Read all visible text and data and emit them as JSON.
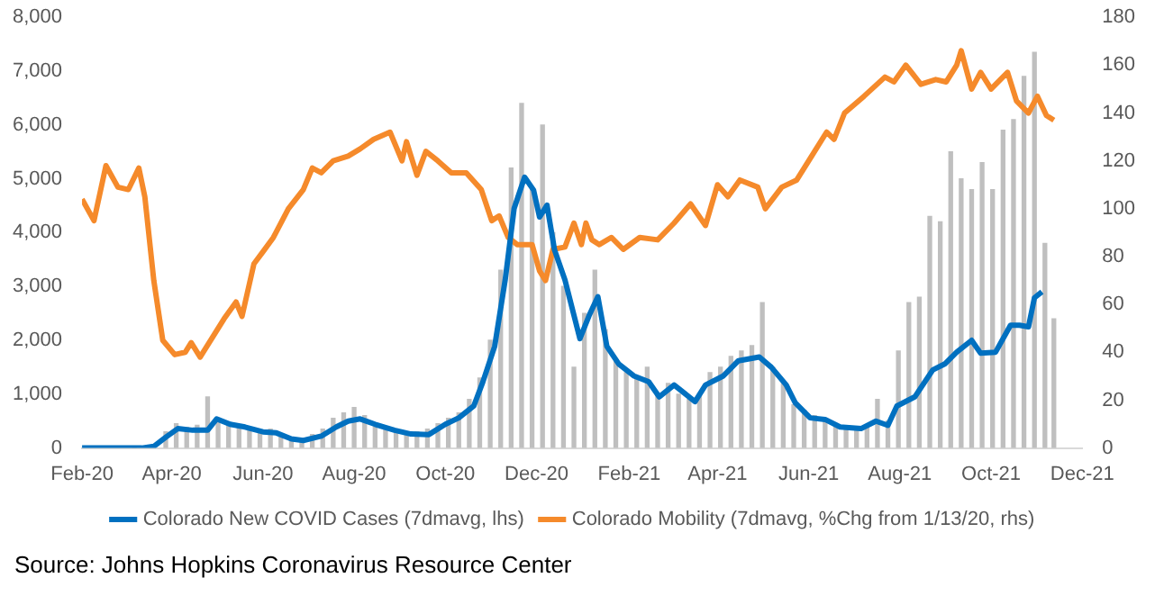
{
  "chart_data": {
    "type": "line",
    "legend": "bottom",
    "grid": false,
    "xlim": [
      "2020-02-01",
      "2021-12-01"
    ],
    "xticks": [
      {
        "value": "2020-02-01",
        "label": "Feb-20"
      },
      {
        "value": "2020-04-01",
        "label": "Apr-20"
      },
      {
        "value": "2020-06-01",
        "label": "Jun-20"
      },
      {
        "value": "2020-08-01",
        "label": "Aug-20"
      },
      {
        "value": "2020-10-01",
        "label": "Oct-20"
      },
      {
        "value": "2020-12-01",
        "label": "Dec-20"
      },
      {
        "value": "2021-02-01",
        "label": "Feb-21"
      },
      {
        "value": "2021-04-01",
        "label": "Apr-21"
      },
      {
        "value": "2021-06-01",
        "label": "Jun-21"
      },
      {
        "value": "2021-08-01",
        "label": "Aug-21"
      },
      {
        "value": "2021-10-01",
        "label": "Oct-21"
      },
      {
        "value": "2021-12-01",
        "label": "Dec-21"
      }
    ],
    "ylim": [
      0,
      8000
    ],
    "yticks": [
      0,
      {
        "value": 1000,
        "label": "1,000"
      },
      {
        "value": 2000,
        "label": "2,000"
      },
      {
        "value": 3000,
        "label": "3,000"
      },
      {
        "value": 4000,
        "label": "4,000"
      },
      {
        "value": 5000,
        "label": "5,000"
      },
      {
        "value": 6000,
        "label": "6,000"
      },
      {
        "value": 7000,
        "label": "7,000"
      },
      {
        "value": 8000,
        "label": "8,000"
      }
    ],
    "y2lim": [
      0,
      180
    ],
    "y2ticks": [
      0,
      20,
      40,
      60,
      80,
      100,
      120,
      140,
      160,
      180
    ],
    "annotations": [
      "Source: Johns Hopkins Coronavirus Resource Center"
    ],
    "series": [
      {
        "type": "bar",
        "color": "#bfbfbf",
        "x": [
          "2020-03-07",
          "2020-03-14",
          "2020-03-21",
          "2020-03-28",
          "2020-04-04",
          "2020-04-11",
          "2020-04-18",
          "2020-04-25",
          "2020-05-02",
          "2020-05-09",
          "2020-05-16",
          "2020-05-23",
          "2020-05-30",
          "2020-06-06",
          "2020-06-13",
          "2020-06-20",
          "2020-06-27",
          "2020-07-04",
          "2020-07-11",
          "2020-07-18",
          "2020-07-25",
          "2020-08-01",
          "2020-08-08",
          "2020-08-15",
          "2020-08-22",
          "2020-08-29",
          "2020-09-05",
          "2020-09-12",
          "2020-09-19",
          "2020-09-26",
          "2020-10-03",
          "2020-10-10",
          "2020-10-17",
          "2020-10-24",
          "2020-10-31",
          "2020-11-07",
          "2020-11-14",
          "2020-11-21",
          "2020-11-28",
          "2020-12-05",
          "2020-12-12",
          "2020-12-19",
          "2020-12-26",
          "2021-01-02",
          "2021-01-09",
          "2021-01-16",
          "2021-01-23",
          "2021-01-30",
          "2021-02-06",
          "2021-02-13",
          "2021-02-20",
          "2021-02-27",
          "2021-03-06",
          "2021-03-13",
          "2021-03-20",
          "2021-03-27",
          "2021-04-03",
          "2021-04-10",
          "2021-04-17",
          "2021-04-24",
          "2021-05-01",
          "2021-05-08",
          "2021-05-15",
          "2021-05-22",
          "2021-05-29",
          "2021-06-05",
          "2021-06-12",
          "2021-06-19",
          "2021-06-26",
          "2021-07-03",
          "2021-07-10",
          "2021-07-17",
          "2021-07-24",
          "2021-07-31",
          "2021-08-07",
          "2021-08-14",
          "2021-08-21",
          "2021-08-28",
          "2021-09-04",
          "2021-09-11",
          "2021-09-18",
          "2021-09-25",
          "2021-10-02",
          "2021-10-09",
          "2021-10-16",
          "2021-10-23",
          "2021-10-30",
          "2021-11-06",
          "2021-11-12"
        ],
        "values": [
          0,
          null,
          null,
          300,
          450,
          380,
          420,
          950,
          550,
          480,
          400,
          350,
          300,
          350,
          250,
          150,
          180,
          250,
          350,
          550,
          650,
          750,
          600,
          450,
          350,
          300,
          250,
          300,
          350,
          450,
          550,
          650,
          900,
          1300,
          2000,
          3300,
          5200,
          6400,
          4800,
          6000,
          4000,
          3000,
          1500,
          2500,
          3300,
          2200,
          1600,
          1400,
          1300,
          1500,
          1000,
          1200,
          1000,
          900,
          1000,
          1400,
          1500,
          1700,
          1800,
          1900,
          2700,
          1500,
          1200,
          800,
          700,
          600,
          500,
          450,
          400,
          350,
          400,
          900,
          500,
          1800,
          2700,
          2800,
          4300,
          4200,
          5500,
          5000,
          4800,
          5300,
          4800,
          5900,
          6100,
          6900,
          7350,
          3800,
          2400
        ]
      },
      {
        "name": "Colorado New COVID Cases (7dmavg, lhs)",
        "color": "#0070c0",
        "x": [
          "2020-02-01",
          "2020-03-12",
          "2020-03-20",
          "2020-03-28",
          "2020-04-05",
          "2020-04-15",
          "2020-04-25",
          "2020-05-01",
          "2020-05-10",
          "2020-05-20",
          "2020-06-01",
          "2020-06-10",
          "2020-06-20",
          "2020-06-28",
          "2020-07-10",
          "2020-07-20",
          "2020-07-28",
          "2020-08-05",
          "2020-08-15",
          "2020-08-28",
          "2020-09-08",
          "2020-09-20",
          "2020-10-01",
          "2020-10-10",
          "2020-10-20",
          "2020-10-26",
          "2020-11-03",
          "2020-11-10",
          "2020-11-16",
          "2020-11-23",
          "2020-11-29",
          "2020-12-03",
          "2020-12-08",
          "2020-12-13",
          "2020-12-20",
          "2020-12-30",
          "2021-01-05",
          "2021-01-11",
          "2021-01-17",
          "2021-01-25",
          "2021-02-04",
          "2021-02-14",
          "2021-02-21",
          "2021-03-03",
          "2021-03-17",
          "2021-03-24",
          "2021-04-05",
          "2021-04-15",
          "2021-04-29",
          "2021-05-07",
          "2021-05-17",
          "2021-05-23",
          "2021-06-02",
          "2021-06-12",
          "2021-06-22",
          "2021-07-06",
          "2021-07-16",
          "2021-07-24",
          "2021-07-30",
          "2021-08-11",
          "2021-08-23",
          "2021-08-31",
          "2021-09-08",
          "2021-09-18",
          "2021-09-24",
          "2021-10-04",
          "2021-10-14",
          "2021-10-20",
          "2021-10-26",
          "2021-10-30",
          "2021-11-04"
        ],
        "values": [
          0,
          0,
          30,
          200,
          360,
          330,
          330,
          540,
          440,
          390,
          300,
          280,
          170,
          140,
          220,
          390,
          500,
          540,
          440,
          330,
          260,
          250,
          440,
          560,
          780,
          1220,
          1890,
          3120,
          4450,
          5030,
          4790,
          4290,
          4510,
          3680,
          3120,
          2030,
          2450,
          2810,
          1890,
          1560,
          1340,
          1230,
          950,
          1170,
          860,
          1170,
          1340,
          1620,
          1690,
          1500,
          1170,
          840,
          560,
          530,
          390,
          360,
          500,
          420,
          780,
          950,
          1450,
          1560,
          1780,
          2000,
          1760,
          1780,
          2280,
          2280,
          2250,
          2790,
          2900
        ]
      },
      {
        "name": "Colorado Mobility (7dmavg, %Chg from 1/13/20, rhs)",
        "color": "#f58a2b",
        "axis": "y2",
        "x": [
          "2020-02-01",
          "2020-02-09",
          "2020-02-17",
          "2020-02-25",
          "2020-03-03",
          "2020-03-10",
          "2020-03-14",
          "2020-03-20",
          "2020-03-26",
          "2020-04-03",
          "2020-04-10",
          "2020-04-14",
          "2020-04-20",
          "2020-04-28",
          "2020-05-06",
          "2020-05-14",
          "2020-05-18",
          "2020-05-26",
          "2020-06-01",
          "2020-06-08",
          "2020-06-18",
          "2020-06-28",
          "2020-07-04",
          "2020-07-10",
          "2020-07-18",
          "2020-07-28",
          "2020-08-05",
          "2020-08-14",
          "2020-08-25",
          "2020-09-02",
          "2020-09-05",
          "2020-09-12",
          "2020-09-18",
          "2020-09-26",
          "2020-10-05",
          "2020-10-15",
          "2020-10-25",
          "2020-11-01",
          "2020-11-06",
          "2020-11-12",
          "2020-11-18",
          "2020-11-28",
          "2020-12-03",
          "2020-12-07",
          "2020-12-12",
          "2020-12-20",
          "2020-12-26",
          "2020-12-31",
          "2021-01-03",
          "2021-01-07",
          "2021-01-12",
          "2021-01-20",
          "2021-01-28",
          "2021-02-08",
          "2021-02-20",
          "2021-03-03",
          "2021-03-14",
          "2021-03-24",
          "2021-04-01",
          "2021-04-08",
          "2021-04-16",
          "2021-04-28",
          "2021-05-03",
          "2021-05-14",
          "2021-05-24",
          "2021-06-03",
          "2021-06-13",
          "2021-06-18",
          "2021-06-25",
          "2021-07-08",
          "2021-07-22",
          "2021-07-28",
          "2021-08-05",
          "2021-08-15",
          "2021-08-25",
          "2021-09-01",
          "2021-09-08",
          "2021-09-11",
          "2021-09-18",
          "2021-09-24",
          "2021-10-01",
          "2021-10-12",
          "2021-10-18",
          "2021-10-26",
          "2021-11-01",
          "2021-11-07",
          "2021-11-12"
        ],
        "values": [
          104,
          95,
          118,
          109,
          108,
          117,
          105,
          70,
          45,
          39,
          40,
          44,
          38,
          46,
          54,
          61,
          55,
          77,
          82,
          88,
          100,
          108,
          117,
          115,
          120,
          122,
          125,
          129,
          132,
          120,
          128,
          114,
          124,
          120,
          115,
          115,
          108,
          95,
          97,
          88,
          85,
          85,
          74,
          70,
          83,
          84,
          94,
          85,
          94,
          87,
          85,
          88,
          83,
          88,
          87,
          94,
          102,
          93,
          110,
          105,
          112,
          109,
          100,
          109,
          112,
          122,
          132,
          129,
          140,
          147,
          155,
          153,
          160,
          152,
          154,
          153,
          160,
          166,
          150,
          157,
          150,
          157,
          145,
          140,
          147,
          139,
          137
        ]
      }
    ]
  }
}
